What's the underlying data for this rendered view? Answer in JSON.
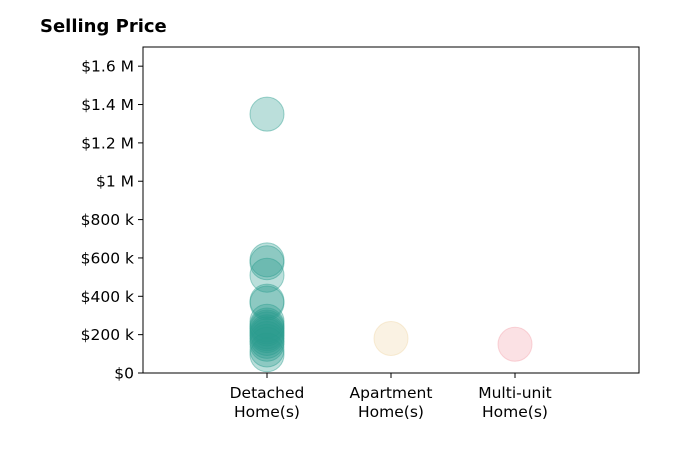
{
  "chart_data": {
    "type": "scatter",
    "title": "Selling Price",
    "xlabel": "",
    "ylabel": "",
    "categories": [
      [
        "Detached",
        "Home(s)"
      ],
      [
        "Apartment",
        "Home(s)"
      ],
      [
        "Multi-unit",
        "Home(s)"
      ]
    ],
    "ylim": [
      0,
      1700000
    ],
    "yticks": [
      {
        "value": 0,
        "label": "$0"
      },
      {
        "value": 200000,
        "label": "$200 k"
      },
      {
        "value": 400000,
        "label": "$400 k"
      },
      {
        "value": 600000,
        "label": "$600 k"
      },
      {
        "value": 800000,
        "label": "$800 k"
      },
      {
        "value": 1000000,
        "label": "$1 M"
      },
      {
        "value": 1200000,
        "label": "$1.2 M"
      },
      {
        "value": 1400000,
        "label": "$1.4 M"
      },
      {
        "value": 1600000,
        "label": "$1.6 M"
      }
    ],
    "grid": false,
    "series": [
      {
        "category": 0,
        "color": "#2a9d8f",
        "values": [
          1350000,
          590000,
          575000,
          510000,
          375000,
          365000,
          270000,
          250000,
          240000,
          230000,
          215000,
          205000,
          195000,
          180000,
          165000,
          150000,
          120000,
          95000
        ]
      },
      {
        "category": 1,
        "color": "#f0d8a8",
        "values": [
          180000
        ]
      },
      {
        "category": 2,
        "color": "#f4a3ac",
        "values": [
          150000
        ]
      }
    ]
  }
}
